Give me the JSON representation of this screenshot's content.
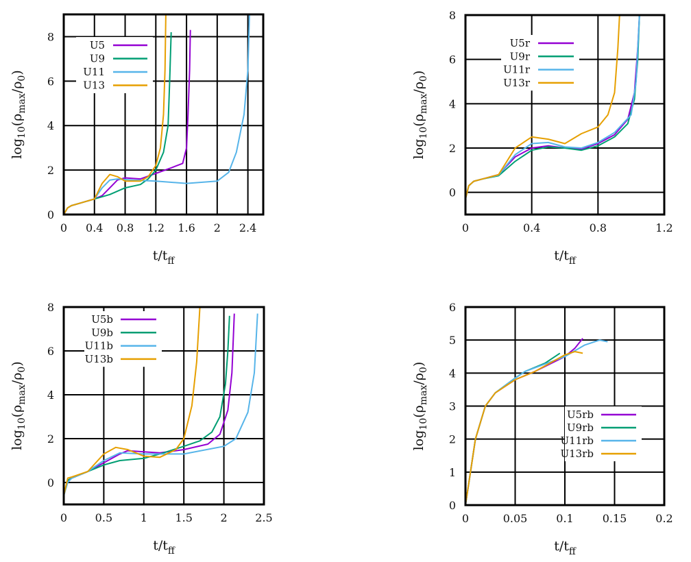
{
  "chart_data": [
    {
      "type": "line",
      "xlabel": {
        "main": "t/t",
        "sub": "ff"
      },
      "ylabel": {
        "a": "log",
        "a_sub": "10",
        "b": "(ρ",
        "b_sub": "max",
        "c": "/ρ",
        "c_sub": "0",
        "d": ")"
      },
      "xlim": [
        0,
        2.6
      ],
      "ylim": [
        0,
        9
      ],
      "xticks": [
        "0",
        "0.4",
        "0.8",
        "1.2",
        "1.6",
        "2",
        "2.4"
      ],
      "xtick_values": [
        0,
        0.4,
        0.8,
        1.2,
        1.6,
        2,
        2.4
      ],
      "yticks": [
        "0",
        "2",
        "4",
        "6",
        "8"
      ],
      "ytick_values": [
        0,
        2,
        4,
        6,
        8
      ],
      "grid": true,
      "legend": "top-left",
      "series": [
        {
          "name": "U5",
          "color": "#9400d3",
          "points": [
            [
              0,
              0
            ],
            [
              0.05,
              0.3
            ],
            [
              0.1,
              0.4
            ],
            [
              0.2,
              0.5
            ],
            [
              0.4,
              0.7
            ],
            [
              0.5,
              0.85
            ],
            [
              0.6,
              1.2
            ],
            [
              0.7,
              1.55
            ],
            [
              0.8,
              1.65
            ],
            [
              1.0,
              1.6
            ],
            [
              1.2,
              1.85
            ],
            [
              1.4,
              2.1
            ],
            [
              1.55,
              2.3
            ],
            [
              1.6,
              3.0
            ],
            [
              1.62,
              4.5
            ],
            [
              1.64,
              6.5
            ],
            [
              1.65,
              8.3
            ]
          ]
        },
        {
          "name": "U9",
          "color": "#009e73",
          "points": [
            [
              0,
              0
            ],
            [
              0.05,
              0.3
            ],
            [
              0.1,
              0.4
            ],
            [
              0.2,
              0.5
            ],
            [
              0.4,
              0.7
            ],
            [
              0.6,
              0.9
            ],
            [
              0.8,
              1.2
            ],
            [
              1.0,
              1.35
            ],
            [
              1.1,
              1.6
            ],
            [
              1.2,
              2.0
            ],
            [
              1.3,
              2.8
            ],
            [
              1.36,
              4.0
            ],
            [
              1.38,
              6.0
            ],
            [
              1.4,
              8.2
            ]
          ]
        },
        {
          "name": "U11",
          "color": "#56b4e9",
          "points": [
            [
              0,
              0
            ],
            [
              0.05,
              0.3
            ],
            [
              0.1,
              0.4
            ],
            [
              0.2,
              0.5
            ],
            [
              0.4,
              0.7
            ],
            [
              0.5,
              1.2
            ],
            [
              0.6,
              1.55
            ],
            [
              0.7,
              1.6
            ],
            [
              0.9,
              1.55
            ],
            [
              1.2,
              1.5
            ],
            [
              1.6,
              1.4
            ],
            [
              2.0,
              1.5
            ],
            [
              2.15,
              1.9
            ],
            [
              2.25,
              2.8
            ],
            [
              2.35,
              4.5
            ],
            [
              2.4,
              6.5
            ],
            [
              2.42,
              9.0
            ]
          ]
        },
        {
          "name": "U13",
          "color": "#e69f00",
          "points": [
            [
              0,
              0
            ],
            [
              0.05,
              0.3
            ],
            [
              0.1,
              0.4
            ],
            [
              0.2,
              0.5
            ],
            [
              0.4,
              0.7
            ],
            [
              0.5,
              1.4
            ],
            [
              0.6,
              1.8
            ],
            [
              0.7,
              1.7
            ],
            [
              0.8,
              1.5
            ],
            [
              1.0,
              1.5
            ],
            [
              1.1,
              1.7
            ],
            [
              1.2,
              2.2
            ],
            [
              1.26,
              3.0
            ],
            [
              1.3,
              4.5
            ],
            [
              1.32,
              6.5
            ],
            [
              1.33,
              9.0
            ]
          ]
        }
      ]
    },
    {
      "type": "line",
      "xlabel": {
        "main": "t/t",
        "sub": "ff"
      },
      "ylabel": {
        "a": "log",
        "a_sub": "10",
        "b": "(ρ",
        "b_sub": "max",
        "c": "/ρ",
        "c_sub": "0",
        "d": ")"
      },
      "xlim": [
        0,
        1.2
      ],
      "ylim": [
        -1,
        8
      ],
      "xticks": [
        "0",
        "0.4",
        "0.8",
        "1.2"
      ],
      "xtick_values": [
        0,
        0.4,
        0.8,
        1.2
      ],
      "yticks": [
        "0",
        "2",
        "4",
        "6",
        "8"
      ],
      "ytick_values": [
        0,
        2,
        4,
        6,
        8
      ],
      "grid": true,
      "legend": "top-left",
      "series": [
        {
          "name": "U5r",
          "color": "#9400d3",
          "points": [
            [
              0,
              -0.3
            ],
            [
              0.02,
              0.3
            ],
            [
              0.05,
              0.5
            ],
            [
              0.1,
              0.6
            ],
            [
              0.2,
              0.8
            ],
            [
              0.3,
              1.6
            ],
            [
              0.4,
              2.0
            ],
            [
              0.5,
              2.1
            ],
            [
              0.6,
              2.0
            ],
            [
              0.7,
              1.95
            ],
            [
              0.8,
              2.2
            ],
            [
              0.9,
              2.6
            ],
            [
              0.98,
              3.3
            ],
            [
              1.02,
              4.5
            ],
            [
              1.04,
              6.5
            ],
            [
              1.05,
              8
            ]
          ]
        },
        {
          "name": "U9r",
          "color": "#009e73",
          "points": [
            [
              0,
              -0.3
            ],
            [
              0.02,
              0.3
            ],
            [
              0.05,
              0.5
            ],
            [
              0.1,
              0.6
            ],
            [
              0.2,
              0.75
            ],
            [
              0.3,
              1.4
            ],
            [
              0.4,
              1.9
            ],
            [
              0.5,
              2.05
            ],
            [
              0.6,
              2.0
            ],
            [
              0.7,
              1.9
            ],
            [
              0.8,
              2.1
            ],
            [
              0.9,
              2.5
            ],
            [
              0.98,
              3.1
            ],
            [
              1.02,
              4.2
            ],
            [
              1.04,
              6.0
            ],
            [
              1.05,
              8
            ]
          ]
        },
        {
          "name": "U11r",
          "color": "#56b4e9",
          "points": [
            [
              0,
              -0.3
            ],
            [
              0.02,
              0.3
            ],
            [
              0.05,
              0.5
            ],
            [
              0.1,
              0.6
            ],
            [
              0.2,
              0.78
            ],
            [
              0.3,
              1.7
            ],
            [
              0.4,
              2.2
            ],
            [
              0.5,
              2.25
            ],
            [
              0.6,
              2.05
            ],
            [
              0.7,
              2.0
            ],
            [
              0.8,
              2.25
            ],
            [
              0.9,
              2.7
            ],
            [
              1.0,
              3.5
            ],
            [
              1.03,
              5.0
            ],
            [
              1.05,
              8
            ]
          ]
        },
        {
          "name": "U13r",
          "color": "#e69f00",
          "points": [
            [
              0,
              -0.3
            ],
            [
              0.02,
              0.3
            ],
            [
              0.05,
              0.5
            ],
            [
              0.1,
              0.6
            ],
            [
              0.2,
              0.8
            ],
            [
              0.3,
              2.0
            ],
            [
              0.4,
              2.5
            ],
            [
              0.5,
              2.4
            ],
            [
              0.6,
              2.2
            ],
            [
              0.7,
              2.65
            ],
            [
              0.8,
              2.95
            ],
            [
              0.86,
              3.5
            ],
            [
              0.9,
              4.5
            ],
            [
              0.92,
              6.5
            ],
            [
              0.93,
              8
            ]
          ]
        }
      ]
    },
    {
      "type": "line",
      "xlabel": {
        "main": "t/t",
        "sub": "ff"
      },
      "ylabel": {
        "a": "log",
        "a_sub": "10",
        "b": "(ρ",
        "b_sub": "max",
        "c": "/ρ",
        "c_sub": "0",
        "d": ")"
      },
      "xlim": [
        0,
        2.5
      ],
      "ylim": [
        -1,
        8
      ],
      "xticks": [
        "0",
        "0.5",
        "1",
        "1.5",
        "2",
        "2.5"
      ],
      "xtick_values": [
        0,
        0.5,
        1,
        1.5,
        2,
        2.5
      ],
      "yticks": [
        "0",
        "2",
        "4",
        "6",
        "8"
      ],
      "ytick_values": [
        0,
        2,
        4,
        6,
        8
      ],
      "grid": true,
      "legend": "top-left",
      "series": [
        {
          "name": "U5b",
          "color": "#9400d3",
          "points": [
            [
              0,
              -0.6
            ],
            [
              0.05,
              0.1
            ],
            [
              0.1,
              0.2
            ],
            [
              0.3,
              0.5
            ],
            [
              0.5,
              0.9
            ],
            [
              0.7,
              1.3
            ],
            [
              0.8,
              1.45
            ],
            [
              1.0,
              1.4
            ],
            [
              1.2,
              1.35
            ],
            [
              1.5,
              1.5
            ],
            [
              1.8,
              1.75
            ],
            [
              1.95,
              2.2
            ],
            [
              2.05,
              3.3
            ],
            [
              2.1,
              5.0
            ],
            [
              2.13,
              7.7
            ]
          ]
        },
        {
          "name": "U9b",
          "color": "#009e73",
          "points": [
            [
              0,
              -0.6
            ],
            [
              0.05,
              0.1
            ],
            [
              0.1,
              0.2
            ],
            [
              0.3,
              0.5
            ],
            [
              0.5,
              0.8
            ],
            [
              0.7,
              1.0
            ],
            [
              1.0,
              1.1
            ],
            [
              1.2,
              1.3
            ],
            [
              1.5,
              1.65
            ],
            [
              1.7,
              1.9
            ],
            [
              1.85,
              2.3
            ],
            [
              1.95,
              3.0
            ],
            [
              2.02,
              4.5
            ],
            [
              2.05,
              6.0
            ],
            [
              2.07,
              7.6
            ]
          ]
        },
        {
          "name": "U11b",
          "color": "#56b4e9",
          "points": [
            [
              0,
              -0.6
            ],
            [
              0.05,
              0.0
            ],
            [
              0.1,
              0.2
            ],
            [
              0.3,
              0.5
            ],
            [
              0.5,
              1.0
            ],
            [
              0.7,
              1.35
            ],
            [
              1.0,
              1.3
            ],
            [
              1.5,
              1.3
            ],
            [
              2.0,
              1.65
            ],
            [
              2.15,
              2.0
            ],
            [
              2.3,
              3.2
            ],
            [
              2.38,
              5.0
            ],
            [
              2.42,
              7.7
            ]
          ]
        },
        {
          "name": "U13b",
          "color": "#e69f00",
          "points": [
            [
              0,
              -0.6
            ],
            [
              0.05,
              0.2
            ],
            [
              0.1,
              0.25
            ],
            [
              0.3,
              0.5
            ],
            [
              0.5,
              1.3
            ],
            [
              0.65,
              1.6
            ],
            [
              0.8,
              1.5
            ],
            [
              1.0,
              1.2
            ],
            [
              1.2,
              1.15
            ],
            [
              1.4,
              1.5
            ],
            [
              1.5,
              2.0
            ],
            [
              1.6,
              3.5
            ],
            [
              1.66,
              5.5
            ],
            [
              1.7,
              8.0
            ]
          ]
        }
      ]
    },
    {
      "type": "line",
      "xlabel": {
        "main": "t/t",
        "sub": "ff"
      },
      "ylabel": {
        "a": "log",
        "a_sub": "10",
        "b": "(ρ",
        "b_sub": "max",
        "c": "/ρ",
        "c_sub": "0",
        "d": ")"
      },
      "xlim": [
        0,
        0.2
      ],
      "ylim": [
        0,
        6
      ],
      "xticks": [
        "0",
        "0.05",
        "0.1",
        "0.15",
        "0.2"
      ],
      "xtick_values": [
        0,
        0.05,
        0.1,
        0.15,
        0.2
      ],
      "yticks": [
        "0",
        "1",
        "2",
        "3",
        "4",
        "5",
        "6"
      ],
      "ytick_values": [
        0,
        1,
        2,
        3,
        4,
        5,
        6
      ],
      "grid": true,
      "legend": "bottom-right",
      "series": [
        {
          "name": "U5rb",
          "color": "#9400d3",
          "points": [
            [
              0,
              0
            ],
            [
              0.005,
              1
            ],
            [
              0.01,
              2
            ],
            [
              0.02,
              3
            ],
            [
              0.03,
              3.4
            ],
            [
              0.05,
              3.8
            ],
            [
              0.07,
              4.05
            ],
            [
              0.09,
              4.35
            ],
            [
              0.1,
              4.5
            ],
            [
              0.11,
              4.75
            ],
            [
              0.118,
              5.05
            ]
          ]
        },
        {
          "name": "U9rb",
          "color": "#009e73",
          "points": [
            [
              0,
              0
            ],
            [
              0.005,
              1
            ],
            [
              0.01,
              2
            ],
            [
              0.02,
              3
            ],
            [
              0.03,
              3.4
            ],
            [
              0.05,
              3.85
            ],
            [
              0.06,
              4.05
            ],
            [
              0.08,
              4.3
            ],
            [
              0.095,
              4.6
            ]
          ]
        },
        {
          "name": "U11rb",
          "color": "#56b4e9",
          "points": [
            [
              0,
              0
            ],
            [
              0.005,
              1
            ],
            [
              0.01,
              2
            ],
            [
              0.02,
              3
            ],
            [
              0.03,
              3.4
            ],
            [
              0.05,
              3.85
            ],
            [
              0.06,
              4.05
            ],
            [
              0.1,
              4.5
            ],
            [
              0.12,
              4.85
            ],
            [
              0.135,
              5.0
            ],
            [
              0.143,
              4.95
            ]
          ]
        },
        {
          "name": "U13rb",
          "color": "#e69f00",
          "points": [
            [
              0,
              0
            ],
            [
              0.005,
              1
            ],
            [
              0.01,
              2
            ],
            [
              0.02,
              3
            ],
            [
              0.03,
              3.4
            ],
            [
              0.05,
              3.8
            ],
            [
              0.07,
              4.05
            ],
            [
              0.1,
              4.55
            ],
            [
              0.11,
              4.65
            ],
            [
              0.118,
              4.6
            ]
          ]
        }
      ]
    }
  ]
}
